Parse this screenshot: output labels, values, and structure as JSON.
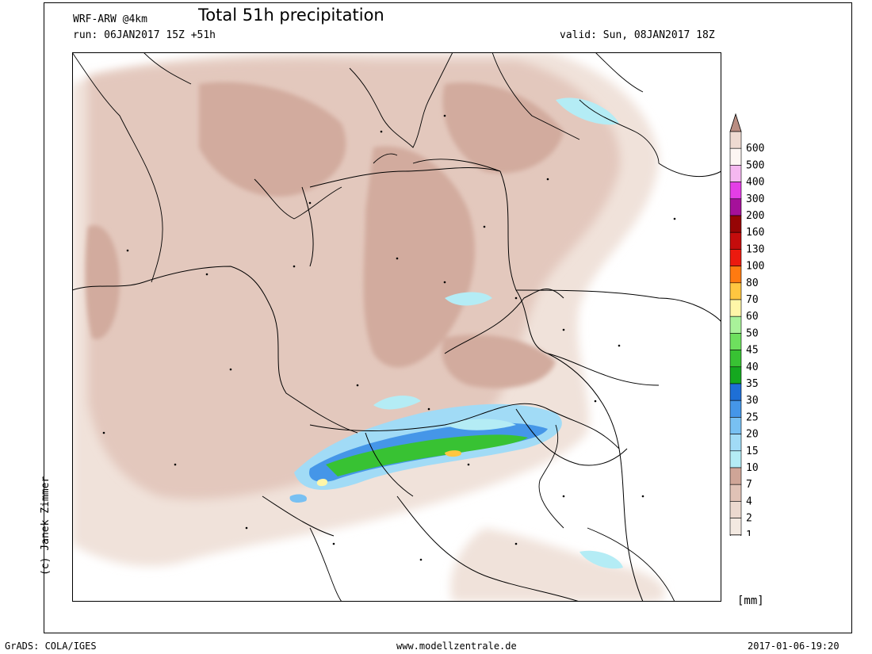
{
  "header": {
    "model": "WRF-ARW @4km",
    "title": "Total 51h precipitation",
    "run": "run: 06JAN2017 15Z +51h",
    "valid": "valid: Sun, 08JAN2017 18Z"
  },
  "credit": "(c) Janek Zimmer",
  "unit": "[mm]",
  "footer": {
    "left": "GrADS: COLA/IGES",
    "center": "www.modellzentrale.de",
    "right": "2017-01-06-19:20"
  },
  "legend": {
    "levels": [
      "1",
      "2",
      "4",
      "7",
      "10",
      "15",
      "20",
      "25",
      "30",
      "35",
      "40",
      "45",
      "50",
      "60",
      "70",
      "80",
      "100",
      "130",
      "160",
      "200",
      "300",
      "400",
      "500",
      "600"
    ],
    "colors": [
      "#f3e9e1",
      "#ecd9cf",
      "#e0c2b6",
      "#cfa597",
      "#b4ecf5",
      "#a1dbf6",
      "#78c0f2",
      "#4596e8",
      "#1e6fd6",
      "#15a81f",
      "#38c233",
      "#6ee05e",
      "#a9f29a",
      "#fff6a8",
      "#ffc640",
      "#ff7a10",
      "#ec1a0f",
      "#c40c0c",
      "#960505",
      "#a5109a",
      "#e43ee6",
      "#f5b8f0",
      "#fdf6f3",
      "#eedad1"
    ],
    "top_color": "#b98d82"
  }
}
